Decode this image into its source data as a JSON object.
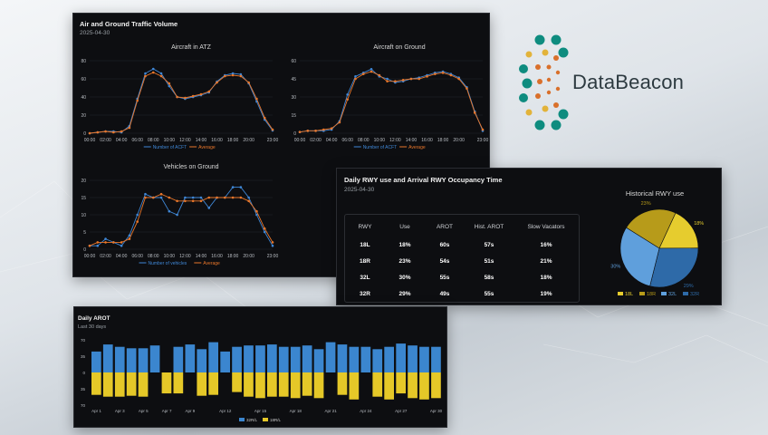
{
  "colors": {
    "blue": "#3f87d6",
    "orange": "#e8762a",
    "yellow": "#e6cc2e",
    "olive": "#b79b1a",
    "steel": "#3a73b5",
    "teal": "#0e8c7f",
    "gold": "#e2b33a",
    "rust": "#d9702b"
  },
  "logo": {
    "text": "DataBeacon",
    "icon": "beacon-dots-icon"
  },
  "traffic_panel": {
    "title": "Air and Ground Traffic Volume",
    "date": "2025-04-30",
    "hour_ticks": [
      "00:00",
      "02:00",
      "04:00",
      "06:00",
      "08:00",
      "10:00",
      "12:00",
      "14:00",
      "16:00",
      "18:00",
      "20:00",
      "23:00"
    ]
  },
  "rwy_panel": {
    "title": "Daily RWY use and Arrival RWY Occupancy Time",
    "date": "2025-04-30",
    "columns": [
      "RWY",
      "Use",
      "AROT",
      "Hist. AROT",
      "Slow Vacators"
    ],
    "rows": [
      [
        "18L",
        "18%",
        "60s",
        "57s",
        "16%"
      ],
      [
        "18R",
        "23%",
        "54s",
        "51s",
        "21%"
      ],
      [
        "32L",
        "30%",
        "55s",
        "58s",
        "18%"
      ],
      [
        "32R",
        "29%",
        "49s",
        "55s",
        "19%"
      ]
    ]
  },
  "arot_panel": {
    "title": "Daily AROT",
    "subtitle": "Last 30 days"
  },
  "chart_data": [
    {
      "type": "line",
      "title": "Aircraft in ATZ",
      "ylim": [
        0,
        80
      ],
      "yticks": [
        0,
        20,
        40,
        60,
        80
      ],
      "x": [
        "00:00",
        "01:00",
        "02:00",
        "03:00",
        "04:00",
        "05:00",
        "06:00",
        "07:00",
        "08:00",
        "09:00",
        "10:00",
        "11:00",
        "12:00",
        "13:00",
        "14:00",
        "15:00",
        "16:00",
        "17:00",
        "18:00",
        "19:00",
        "20:00",
        "21:00",
        "22:00",
        "23:00"
      ],
      "series": [
        {
          "name": "Number of ACFT",
          "values": [
            0,
            1,
            2,
            2,
            1,
            8,
            38,
            66,
            71,
            66,
            52,
            40,
            38,
            40,
            42,
            45,
            57,
            64,
            66,
            65,
            55,
            35,
            15,
            3
          ]
        },
        {
          "name": "Average",
          "values": [
            0,
            1,
            2,
            1,
            2,
            6,
            36,
            63,
            67,
            63,
            55,
            40,
            39,
            41,
            43,
            46,
            56,
            63,
            64,
            63,
            56,
            38,
            17,
            4
          ]
        }
      ]
    },
    {
      "type": "line",
      "title": "Aircraft on Ground",
      "ylim": [
        0,
        60
      ],
      "yticks": [
        0,
        15,
        30,
        45,
        60
      ],
      "x": [
        "00:00",
        "01:00",
        "02:00",
        "03:00",
        "04:00",
        "05:00",
        "06:00",
        "07:00",
        "08:00",
        "09:00",
        "10:00",
        "11:00",
        "12:00",
        "13:00",
        "14:00",
        "15:00",
        "16:00",
        "17:00",
        "18:00",
        "19:00",
        "20:00",
        "21:00",
        "22:00",
        "23:00"
      ],
      "series": [
        {
          "name": "Number of ACFT",
          "values": [
            1,
            2,
            2,
            2,
            3,
            10,
            32,
            47,
            50,
            53,
            47,
            45,
            42,
            43,
            45,
            46,
            48,
            50,
            51,
            49,
            46,
            38,
            18,
            2
          ]
        },
        {
          "name": "Average",
          "values": [
            1,
            2,
            2,
            3,
            4,
            9,
            28,
            45,
            49,
            51,
            48,
            43,
            43,
            44,
            45,
            45,
            47,
            49,
            50,
            48,
            45,
            37,
            17,
            3
          ]
        }
      ]
    },
    {
      "type": "line",
      "title": "Vehicles on Ground",
      "ylim": [
        0,
        20
      ],
      "yticks": [
        0,
        5,
        10,
        15,
        20
      ],
      "x": [
        "00:00",
        "01:00",
        "02:00",
        "03:00",
        "04:00",
        "05:00",
        "06:00",
        "07:00",
        "08:00",
        "09:00",
        "10:00",
        "11:00",
        "12:00",
        "13:00",
        "14:00",
        "15:00",
        "16:00",
        "17:00",
        "18:00",
        "19:00",
        "20:00",
        "21:00",
        "22:00",
        "23:00"
      ],
      "series": [
        {
          "name": "Number of vehicles",
          "values": [
            1,
            1,
            3,
            2,
            1,
            4,
            10,
            16,
            15,
            15,
            11,
            10,
            15,
            15,
            15,
            12,
            15,
            15,
            18,
            18,
            15,
            10,
            5,
            1
          ]
        },
        {
          "name": "Average",
          "values": [
            1,
            2,
            2,
            2,
            2,
            3,
            8,
            15,
            15,
            16,
            15,
            14,
            14,
            14,
            14,
            15,
            15,
            15,
            15,
            15,
            14,
            11,
            6,
            2
          ]
        }
      ]
    },
    {
      "type": "pie",
      "title": "Historical RWY use",
      "labels": [
        "18L",
        "18R",
        "32L",
        "32R"
      ],
      "values": [
        18,
        23,
        30,
        29
      ],
      "value_labels": [
        "18%",
        "23%",
        "30%",
        "29%"
      ],
      "colors": [
        "#e6cc2e",
        "#b79b1a",
        "#5f9fdc",
        "#2e6aa8"
      ]
    },
    {
      "type": "bar",
      "title": "Daily AROT",
      "subtitle": "Last 30 days",
      "ylim": [
        -70,
        70
      ],
      "yticks": [
        70,
        35,
        0,
        35,
        70
      ],
      "categories": [
        "Apr 1",
        "Apr 2",
        "Apr 3",
        "Apr 4",
        "Apr 5",
        "Apr 6",
        "Apr 7",
        "Apr 8",
        "Apr 9",
        "Apr 10",
        "Apr 11",
        "Apr 12",
        "Apr 13",
        "Apr 14",
        "Apr 15",
        "Apr 16",
        "Apr 17",
        "Apr 18",
        "Apr 19",
        "Apr 20",
        "Apr 21",
        "Apr 22",
        "Apr 23",
        "Apr 24",
        "Apr 25",
        "Apr 26",
        "Apr 27",
        "Apr 28",
        "Apr 29",
        "Apr 30"
      ],
      "tick_labels": [
        "Apr 1",
        "Apr 3",
        "Apr 5",
        "Apr 7",
        "Apr 9",
        "Apr 12",
        "Apr 15",
        "Apr 18",
        "Apr 21",
        "Apr 24",
        "Apr 27",
        "Apr 30"
      ],
      "tick_indices": [
        0,
        2,
        4,
        6,
        8,
        11,
        14,
        17,
        20,
        23,
        26,
        29
      ],
      "series": [
        {
          "name": "32R/L",
          "values": [
            45,
            60,
            55,
            52,
            52,
            58,
            0,
            55,
            60,
            50,
            65,
            45,
            55,
            58,
            58,
            60,
            55,
            55,
            58,
            50,
            65,
            60,
            55,
            55,
            50,
            55,
            62,
            58,
            55,
            55
          ]
        },
        {
          "name": "18R/L",
          "values": [
            -48,
            -52,
            -52,
            -50,
            -52,
            0,
            -45,
            -45,
            0,
            -50,
            -48,
            0,
            -42,
            -52,
            -55,
            -52,
            -52,
            -55,
            -50,
            -55,
            0,
            -48,
            -58,
            0,
            -52,
            -58,
            -45,
            -55,
            -58,
            -55
          ]
        }
      ]
    }
  ]
}
